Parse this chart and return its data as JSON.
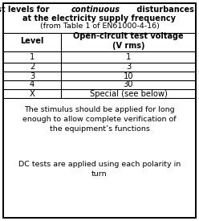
{
  "title_part1": "Test levels for ",
  "title_italic": "continuous",
  "title_part2": " disturbances",
  "title_line2": "at the electricity supply frequency",
  "subtitle": "(from Table 1 of EN61000-4-16)",
  "col_header1": "Level",
  "col_header2": "Open-circuit test voltage\n(V rms)",
  "rows": [
    [
      "1",
      "1"
    ],
    [
      "2",
      "3"
    ],
    [
      "3",
      "10"
    ],
    [
      "4",
      "30"
    ],
    [
      "X",
      "Special (see below)"
    ]
  ],
  "footer1": "The stimulus should be applied for long\nenough to allow complete verification of\nthe equipment’s functions",
  "footer2": "DC tests are applied using each polarity in\nturn",
  "bg_color": "#ffffff",
  "border_color": "#000000",
  "text_color": "#000000",
  "fs_title": 7.0,
  "fs_subtitle": 6.8,
  "fs_header": 7.0,
  "fs_body": 7.2,
  "fs_footer": 6.8,
  "col_split": 0.3
}
